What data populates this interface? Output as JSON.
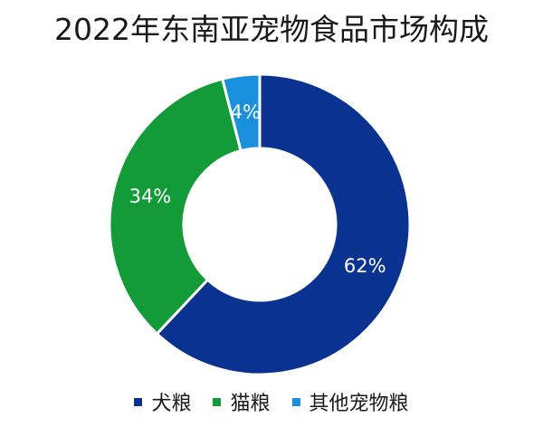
{
  "chart_data": {
    "type": "pie",
    "title": "2022年东南亚宠物食品市场构成",
    "donut": true,
    "categories": [
      "犬粮",
      "猫粮",
      "其他宠物粮"
    ],
    "values": [
      62,
      34,
      4
    ],
    "labels": [
      "62%",
      "34%",
      "4%"
    ],
    "colors": [
      "#0a3391",
      "#139a39",
      "#1a8fdb"
    ],
    "legend_position": "bottom"
  }
}
